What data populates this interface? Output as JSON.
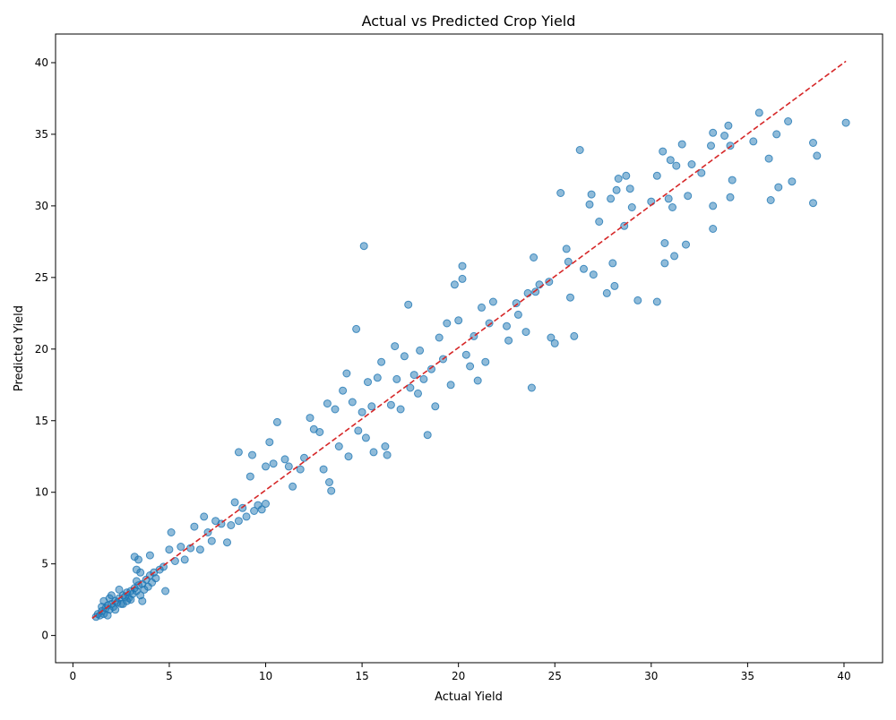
{
  "chart_data": {
    "type": "scatter",
    "title": "Actual vs Predicted Crop Yield",
    "xlabel": "Actual Yield",
    "ylabel": "Predicted Yield",
    "xlim": [
      -0.9,
      42.0
    ],
    "ylim": [
      -1.9,
      42.0
    ],
    "xticks": [
      0,
      5,
      10,
      15,
      20,
      25,
      30,
      35,
      40
    ],
    "yticks": [
      0,
      5,
      10,
      15,
      20,
      25,
      30,
      35,
      40
    ],
    "grid": false,
    "colors": {
      "points": "#1f77b4",
      "reference_line": "#d62728"
    },
    "reference_line": {
      "style": "dashed",
      "from": [
        1.0,
        1.2
      ],
      "to": [
        40.1,
        40.1
      ]
    },
    "series": [
      {
        "points": [
          [
            1.2,
            1.3
          ],
          [
            1.3,
            1.5
          ],
          [
            1.4,
            1.4
          ],
          [
            1.5,
            1.7
          ],
          [
            1.6,
            1.5
          ],
          [
            1.7,
            1.9
          ],
          [
            1.8,
            2.1
          ],
          [
            1.9,
            1.8
          ],
          [
            2.0,
            2.2
          ],
          [
            2.1,
            2.0
          ],
          [
            2.2,
            2.4
          ],
          [
            2.3,
            2.3
          ],
          [
            2.4,
            2.6
          ],
          [
            2.5,
            2.2
          ],
          [
            2.6,
            2.8
          ],
          [
            2.7,
            2.7
          ],
          [
            2.8,
            3.0
          ],
          [
            2.9,
            2.6
          ],
          [
            3.0,
            3.1
          ],
          [
            3.1,
            2.9
          ],
          [
            3.2,
            3.3
          ],
          [
            3.3,
            3.1
          ],
          [
            3.4,
            3.5
          ],
          [
            3.5,
            2.8
          ],
          [
            3.6,
            3.6
          ],
          [
            3.7,
            3.2
          ],
          [
            3.8,
            3.9
          ],
          [
            3.9,
            3.4
          ],
          [
            4.0,
            4.2
          ],
          [
            4.1,
            3.7
          ],
          [
            4.2,
            4.4
          ],
          [
            4.3,
            4.0
          ],
          [
            4.5,
            4.6
          ],
          [
            4.7,
            4.8
          ],
          [
            1.5,
            2.0
          ],
          [
            1.8,
            1.4
          ],
          [
            2.2,
            1.8
          ],
          [
            2.6,
            2.2
          ],
          [
            3.0,
            2.5
          ],
          [
            3.3,
            3.8
          ],
          [
            3.6,
            2.4
          ],
          [
            2.0,
            2.8
          ],
          [
            2.4,
            3.2
          ],
          [
            2.8,
            2.4
          ],
          [
            1.6,
            2.4
          ],
          [
            1.9,
            2.6
          ],
          [
            3.5,
            4.4
          ],
          [
            3.2,
            5.5
          ],
          [
            4.0,
            5.6
          ],
          [
            3.4,
            5.3
          ],
          [
            3.3,
            4.6
          ],
          [
            4.8,
            3.1
          ],
          [
            5.0,
            6.0
          ],
          [
            5.1,
            7.2
          ],
          [
            5.3,
            5.2
          ],
          [
            5.6,
            6.2
          ],
          [
            5.8,
            5.3
          ],
          [
            6.1,
            6.1
          ],
          [
            6.3,
            7.6
          ],
          [
            6.6,
            6.0
          ],
          [
            6.8,
            8.3
          ],
          [
            7.0,
            7.2
          ],
          [
            7.2,
            6.6
          ],
          [
            7.4,
            8.0
          ],
          [
            7.7,
            7.8
          ],
          [
            8.0,
            6.5
          ],
          [
            8.2,
            7.7
          ],
          [
            8.4,
            9.3
          ],
          [
            8.6,
            8.0
          ],
          [
            8.8,
            8.9
          ],
          [
            9.0,
            8.3
          ],
          [
            9.2,
            11.1
          ],
          [
            9.4,
            8.7
          ],
          [
            9.6,
            9.1
          ],
          [
            9.8,
            8.8
          ],
          [
            10.0,
            9.2
          ],
          [
            10.2,
            13.5
          ],
          [
            10.4,
            12.0
          ],
          [
            10.6,
            14.9
          ],
          [
            10.0,
            11.8
          ],
          [
            8.6,
            12.8
          ],
          [
            9.3,
            12.6
          ],
          [
            11.0,
            12.3
          ],
          [
            11.2,
            11.8
          ],
          [
            11.4,
            10.4
          ],
          [
            11.8,
            11.6
          ],
          [
            12.0,
            12.4
          ],
          [
            12.3,
            15.2
          ],
          [
            12.5,
            14.4
          ],
          [
            12.8,
            14.2
          ],
          [
            13.0,
            11.6
          ],
          [
            13.2,
            16.2
          ],
          [
            13.3,
            10.7
          ],
          [
            13.4,
            10.1
          ],
          [
            13.6,
            15.8
          ],
          [
            13.8,
            13.2
          ],
          [
            14.0,
            17.1
          ],
          [
            14.2,
            18.3
          ],
          [
            14.3,
            12.5
          ],
          [
            14.5,
            16.3
          ],
          [
            14.7,
            21.4
          ],
          [
            14.8,
            14.3
          ],
          [
            15.0,
            15.6
          ],
          [
            15.1,
            27.2
          ],
          [
            15.2,
            13.8
          ],
          [
            15.3,
            17.7
          ],
          [
            15.5,
            16.0
          ],
          [
            15.6,
            12.8
          ],
          [
            15.8,
            18.0
          ],
          [
            16.0,
            19.1
          ],
          [
            16.2,
            13.2
          ],
          [
            16.3,
            12.6
          ],
          [
            16.5,
            16.1
          ],
          [
            16.7,
            20.2
          ],
          [
            16.8,
            17.9
          ],
          [
            17.0,
            15.8
          ],
          [
            17.2,
            19.5
          ],
          [
            17.4,
            23.1
          ],
          [
            17.5,
            17.3
          ],
          [
            17.7,
            18.2
          ],
          [
            17.9,
            16.9
          ],
          [
            18.0,
            19.9
          ],
          [
            18.2,
            17.9
          ],
          [
            18.4,
            14.0
          ],
          [
            18.6,
            18.6
          ],
          [
            18.8,
            16.0
          ],
          [
            19.0,
            20.8
          ],
          [
            19.2,
            19.3
          ],
          [
            19.4,
            21.8
          ],
          [
            19.6,
            17.5
          ],
          [
            19.8,
            24.5
          ],
          [
            20.0,
            22.0
          ],
          [
            20.2,
            25.8
          ],
          [
            20.2,
            24.9
          ],
          [
            20.4,
            19.6
          ],
          [
            20.6,
            18.8
          ],
          [
            20.8,
            20.9
          ],
          [
            21.0,
            17.8
          ],
          [
            21.2,
            22.9
          ],
          [
            21.4,
            19.1
          ],
          [
            21.6,
            21.8
          ],
          [
            21.8,
            23.3
          ],
          [
            22.5,
            21.6
          ],
          [
            22.6,
            20.6
          ],
          [
            23.0,
            23.2
          ],
          [
            23.1,
            22.4
          ],
          [
            23.5,
            21.2
          ],
          [
            23.6,
            23.9
          ],
          [
            23.8,
            17.3
          ],
          [
            23.9,
            26.4
          ],
          [
            24.0,
            24.0
          ],
          [
            24.2,
            24.5
          ],
          [
            24.7,
            24.7
          ],
          [
            24.8,
            20.8
          ],
          [
            25.0,
            20.4
          ],
          [
            25.3,
            30.9
          ],
          [
            25.6,
            27.0
          ],
          [
            25.7,
            26.1
          ],
          [
            25.8,
            23.6
          ],
          [
            26.0,
            20.9
          ],
          [
            26.3,
            33.9
          ],
          [
            26.5,
            25.6
          ],
          [
            26.8,
            30.1
          ],
          [
            26.9,
            30.8
          ],
          [
            27.0,
            25.2
          ],
          [
            27.3,
            28.9
          ],
          [
            27.7,
            23.9
          ],
          [
            27.9,
            30.5
          ],
          [
            28.0,
            26.0
          ],
          [
            28.1,
            24.4
          ],
          [
            28.2,
            31.1
          ],
          [
            28.3,
            31.9
          ],
          [
            28.6,
            28.6
          ],
          [
            28.7,
            32.1
          ],
          [
            28.9,
            31.2
          ],
          [
            29.0,
            29.9
          ],
          [
            29.3,
            23.4
          ],
          [
            30.0,
            30.3
          ],
          [
            30.3,
            32.1
          ],
          [
            30.3,
            23.3
          ],
          [
            30.6,
            33.8
          ],
          [
            30.7,
            27.4
          ],
          [
            30.7,
            26.0
          ],
          [
            30.9,
            30.5
          ],
          [
            31.0,
            33.2
          ],
          [
            31.1,
            29.9
          ],
          [
            31.2,
            26.5
          ],
          [
            31.3,
            32.8
          ],
          [
            31.6,
            34.3
          ],
          [
            31.8,
            27.3
          ],
          [
            31.9,
            30.7
          ],
          [
            32.1,
            32.9
          ],
          [
            32.6,
            32.3
          ],
          [
            33.1,
            34.2
          ],
          [
            33.2,
            35.1
          ],
          [
            33.2,
            30.0
          ],
          [
            33.2,
            28.4
          ],
          [
            33.8,
            34.9
          ],
          [
            34.0,
            35.6
          ],
          [
            34.1,
            34.2
          ],
          [
            34.2,
            31.8
          ],
          [
            34.1,
            30.6
          ],
          [
            35.3,
            34.5
          ],
          [
            35.6,
            36.5
          ],
          [
            36.1,
            33.3
          ],
          [
            36.2,
            30.4
          ],
          [
            36.5,
            35.0
          ],
          [
            36.6,
            31.3
          ],
          [
            37.1,
            35.9
          ],
          [
            37.3,
            31.7
          ],
          [
            38.4,
            34.4
          ],
          [
            38.4,
            30.2
          ],
          [
            38.6,
            33.5
          ],
          [
            40.1,
            35.8
          ]
        ]
      }
    ]
  }
}
